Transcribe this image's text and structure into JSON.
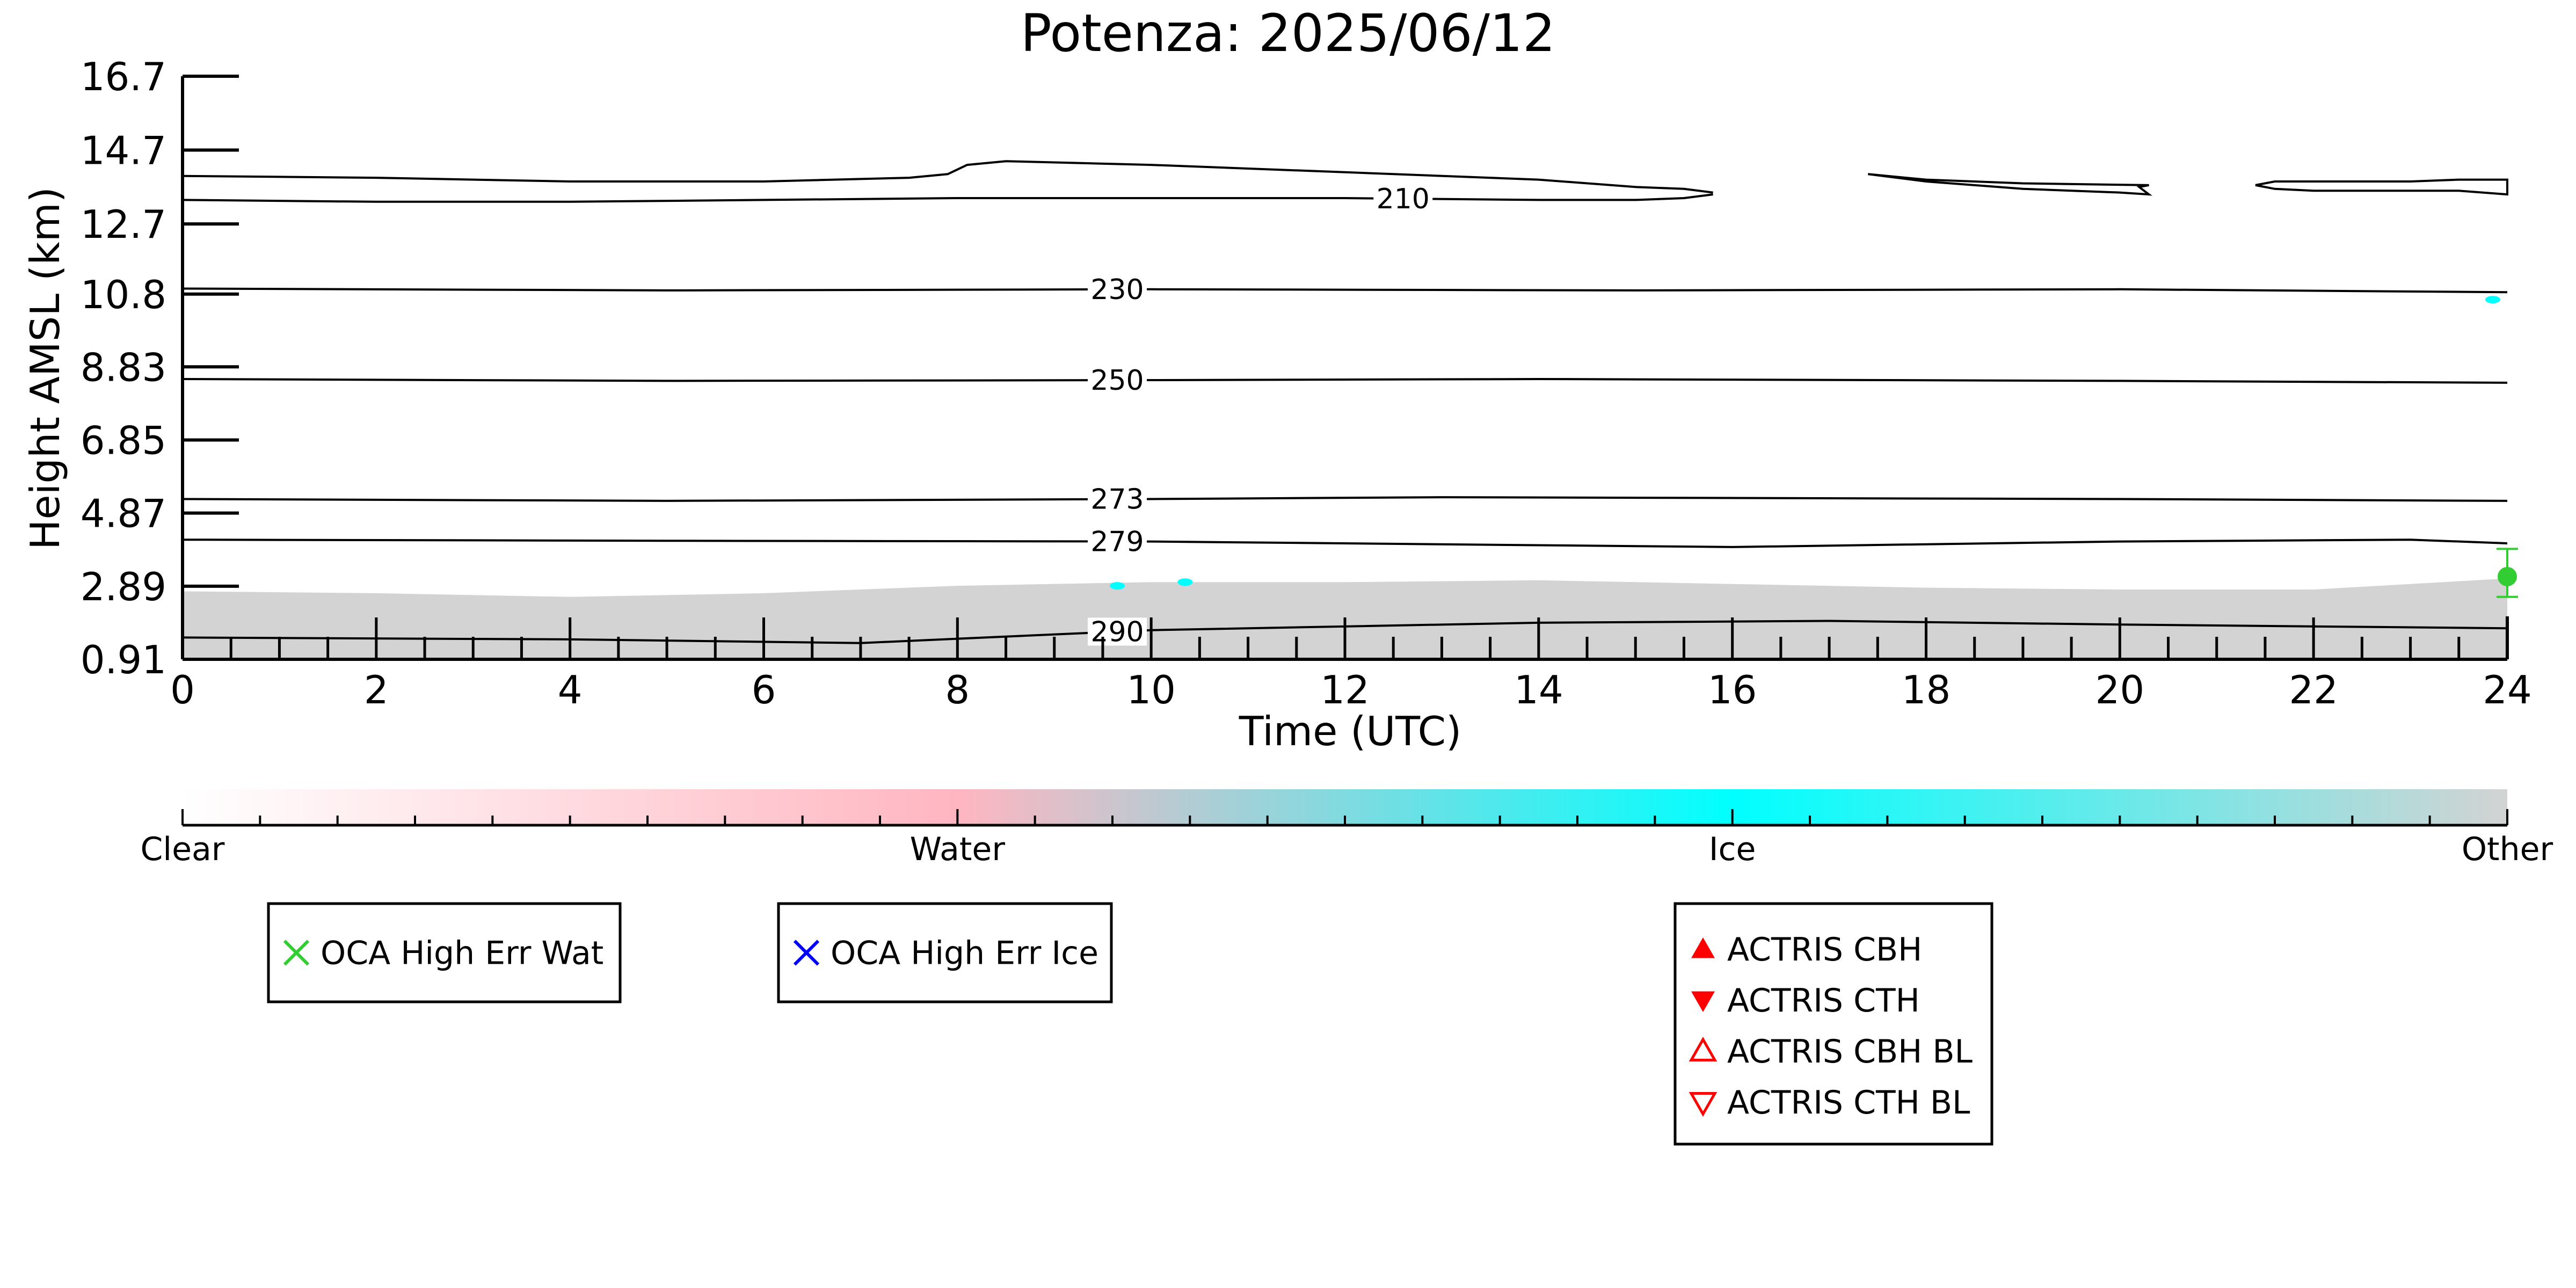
{
  "chart_data": {
    "type": "area",
    "title": "Potenza: 2025/06/12",
    "xlabel": "Time (UTC)",
    "ylabel": "Height AMSL (km)",
    "xlim": [
      0,
      24
    ],
    "ylim": [
      0.91,
      16.7
    ],
    "x_ticks": [
      "0",
      "2",
      "4",
      "6",
      "8",
      "10",
      "12",
      "14",
      "16",
      "18",
      "20",
      "22",
      "24"
    ],
    "y_ticks": [
      "0.91",
      "2.89",
      "4.87",
      "6.85",
      "8.83",
      "10.8",
      "12.7",
      "14.7",
      "16.7"
    ],
    "grid": false,
    "temperature_contours": [
      {
        "label": "210",
        "label_x": 12.6,
        "x": [
          0,
          2,
          4,
          6,
          8,
          10,
          12,
          14,
          15,
          15.5,
          15.8
        ],
        "y": [
          13.35,
          13.3,
          13.3,
          13.35,
          13.4,
          13.4,
          13.4,
          13.35,
          13.35,
          13.4,
          13.5
        ]
      },
      {
        "label": "",
        "x": [
          0,
          2,
          4,
          6,
          7.5,
          7.9,
          8.1,
          8.5,
          10,
          12,
          14,
          15,
          15.5,
          15.8
        ],
        "y": [
          14.0,
          13.95,
          13.85,
          13.85,
          13.95,
          14.05,
          14.3,
          14.4,
          14.3,
          14.1,
          13.9,
          13.7,
          13.65,
          13.55
        ]
      },
      {
        "label": "",
        "x": [
          17.4,
          18.0,
          19.0,
          20.0,
          20.3,
          20.2,
          20.3,
          19.0,
          18.0,
          17.4
        ],
        "y": [
          14.05,
          13.85,
          13.65,
          13.55,
          13.5,
          13.7,
          13.75,
          13.8,
          13.9,
          14.05
        ]
      },
      {
        "label": "",
        "x": [
          21.4,
          21.6,
          22.5,
          23.0,
          23.5,
          24.0,
          24.0,
          23.5,
          23.0,
          22.0,
          21.6,
          21.4
        ],
        "y": [
          13.75,
          13.85,
          13.85,
          13.85,
          13.9,
          13.9,
          13.5,
          13.6,
          13.6,
          13.6,
          13.65,
          13.75
        ]
      },
      {
        "label": "230",
        "label_x": 9.65,
        "x": [
          0,
          5,
          10,
          15,
          20,
          24
        ],
        "y": [
          10.95,
          10.9,
          10.93,
          10.9,
          10.93,
          10.85
        ]
      },
      {
        "label": "250",
        "label_x": 9.65,
        "x": [
          0,
          5,
          10,
          14,
          20,
          24
        ],
        "y": [
          8.5,
          8.45,
          8.47,
          8.5,
          8.45,
          8.4
        ]
      },
      {
        "label": "273",
        "label_x": 9.65,
        "x": [
          0,
          5,
          10,
          13,
          20,
          24
        ],
        "y": [
          5.25,
          5.2,
          5.25,
          5.3,
          5.25,
          5.2
        ]
      },
      {
        "label": "279",
        "label_x": 9.65,
        "x": [
          0,
          5,
          10,
          14,
          16,
          20,
          23,
          24
        ],
        "y": [
          4.15,
          4.12,
          4.1,
          4.0,
          3.95,
          4.1,
          4.15,
          4.05
        ]
      },
      {
        "label": "290",
        "label_x": 9.65,
        "x": [
          0,
          4,
          7,
          10,
          14,
          17,
          20,
          24
        ],
        "y": [
          1.5,
          1.45,
          1.35,
          1.7,
          1.9,
          1.95,
          1.85,
          1.75
        ]
      }
    ],
    "other_region_top": {
      "x": [
        0,
        2,
        4,
        6,
        8,
        10,
        12,
        14,
        16,
        18,
        20,
        22,
        24
      ],
      "y": [
        2.75,
        2.7,
        2.6,
        2.7,
        2.9,
        3.0,
        3.0,
        3.05,
        2.95,
        2.85,
        2.8,
        2.8,
        3.1
      ]
    },
    "ice_patches": [
      {
        "x": 23.85,
        "y": 10.65
      },
      {
        "x": 10.35,
        "y": 3.0
      },
      {
        "x": 9.65,
        "y": 2.9
      }
    ],
    "oca_high_err_wat_marker": {
      "x": 24.0,
      "y": 3.15,
      "err_low": 2.6,
      "err_high": 3.9
    },
    "colorbar": {
      "labels": [
        "Clear",
        "Water",
        "Ice",
        "Other"
      ],
      "colors": [
        "#ffffff",
        "#ffb6c1",
        "#00ffff",
        "#d3d3d3"
      ]
    },
    "legends": [
      {
        "entries": [
          {
            "label": "OCA High Err Wat",
            "marker": "x",
            "color": "#32cd32"
          }
        ]
      },
      {
        "entries": [
          {
            "label": "OCA High Err Ice",
            "marker": "x",
            "color": "#0000ff"
          }
        ]
      },
      {
        "entries": [
          {
            "label": "ACTRIS CBH",
            "marker": "triangle-up-filled",
            "color": "#ff0000"
          },
          {
            "label": "ACTRIS CTH",
            "marker": "triangle-down-filled",
            "color": "#ff0000"
          },
          {
            "label": "ACTRIS CBH BL",
            "marker": "triangle-up-open",
            "color": "#ff0000"
          },
          {
            "label": "ACTRIS CTH BL",
            "marker": "triangle-down-open",
            "color": "#ff0000"
          }
        ]
      }
    ]
  }
}
